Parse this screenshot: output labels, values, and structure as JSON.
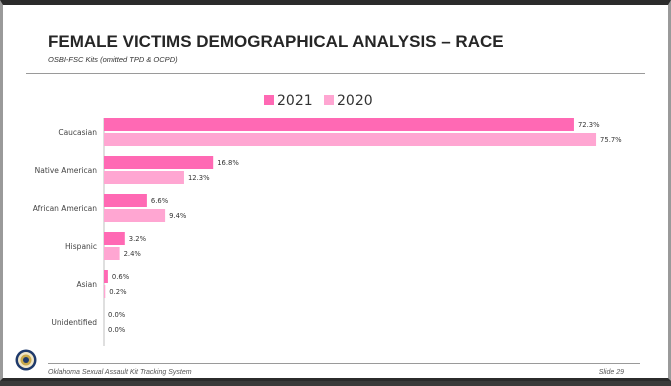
{
  "slide": {
    "title": "FEMALE VICTIMS DEMOGRAPHICAL ANALYSIS – RACE",
    "subtitle": "OSBI-FSC Kits (omitted TPD & OCPD)",
    "footer_left": "Oklahoma Sexual Assault Kit Tracking System",
    "footer_right": "Slide 29",
    "seal_icon": "state-seal-icon"
  },
  "colors": {
    "series_2021": "#ff69b4",
    "series_2020": "#ffa6d2"
  },
  "chart_data": {
    "type": "bar",
    "orientation": "horizontal",
    "categories": [
      "Caucasian",
      "Native American",
      "African American",
      "Hispanic",
      "Asian",
      "Unidentified"
    ],
    "series": [
      {
        "name": "2021",
        "values": [
          72.3,
          16.8,
          6.6,
          3.2,
          0.6,
          0.0
        ],
        "labels": [
          "72.3%",
          "16.8%",
          "6.6%",
          "3.2%",
          "0.6%",
          "0.0%"
        ]
      },
      {
        "name": "2020",
        "values": [
          75.7,
          12.3,
          9.4,
          2.4,
          0.2,
          0.0
        ],
        "labels": [
          "75.7%",
          "12.3%",
          "9.4%",
          "2.4%",
          "0.2%",
          "0.0%"
        ]
      }
    ],
    "title": "",
    "xlabel": "",
    "ylabel": "",
    "xlim": [
      0,
      80
    ],
    "unit": "%",
    "legend_position": "top-center",
    "grid": false
  }
}
